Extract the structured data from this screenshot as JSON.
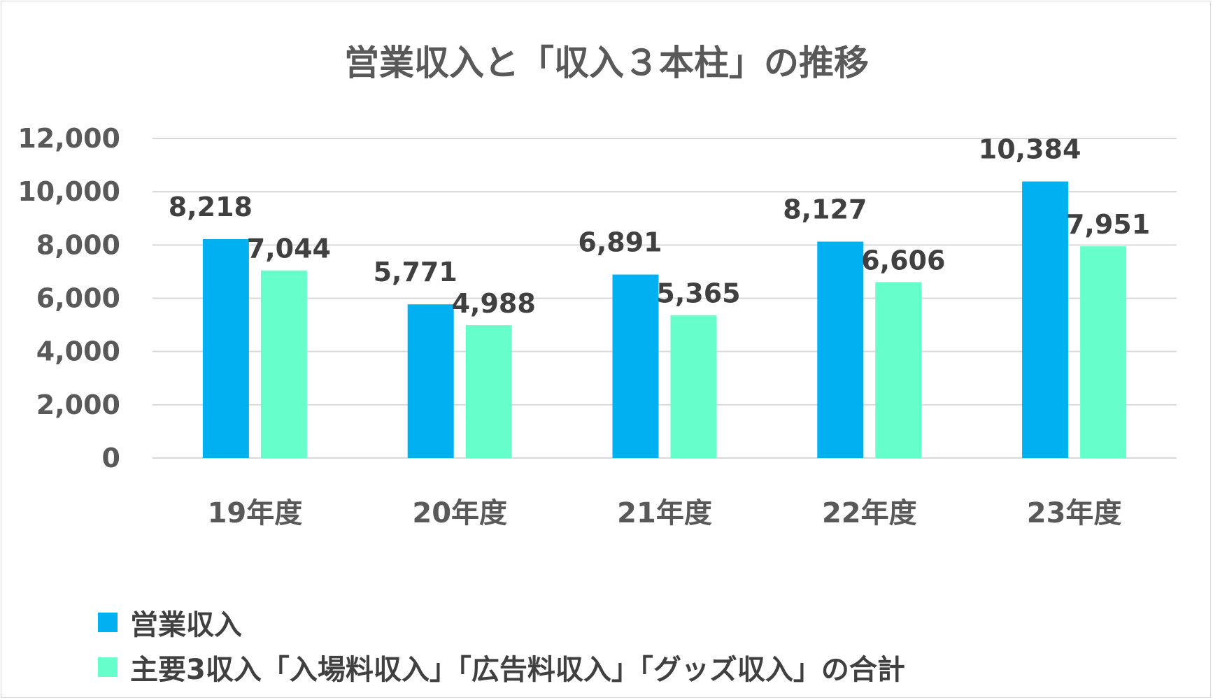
{
  "chart_data": {
    "type": "bar",
    "title": "営業収入と「収入３本柱」の推移",
    "categories": [
      "19年度",
      "20年度",
      "21年度",
      "22年度",
      "23年度"
    ],
    "series": [
      {
        "name": "営業収入",
        "color": "#00b0f0",
        "values": [
          8218,
          5771,
          6891,
          8127,
          10384
        ],
        "labels": [
          "8,218",
          "5,771",
          "6,891",
          "8,127",
          "10,384"
        ]
      },
      {
        "name": "主要3収入「入場料収入」「広告料収入」「グッズ収入」の合計",
        "color": "#66ffcc",
        "values": [
          7044,
          4988,
          5365,
          6606,
          7951
        ],
        "labels": [
          "7,044",
          "4,988",
          "5,365",
          "6,606",
          "7,951"
        ]
      }
    ],
    "yticks": [
      0,
      2000,
      4000,
      6000,
      8000,
      10000,
      12000
    ],
    "ytick_labels": [
      "0",
      "2,000",
      "4,000",
      "6,000",
      "8,000",
      "10,000",
      "12,000"
    ],
    "ylim": [
      0,
      12000
    ],
    "xlabel": "",
    "ylabel": "",
    "grid": true,
    "legend": "bottom-left"
  }
}
